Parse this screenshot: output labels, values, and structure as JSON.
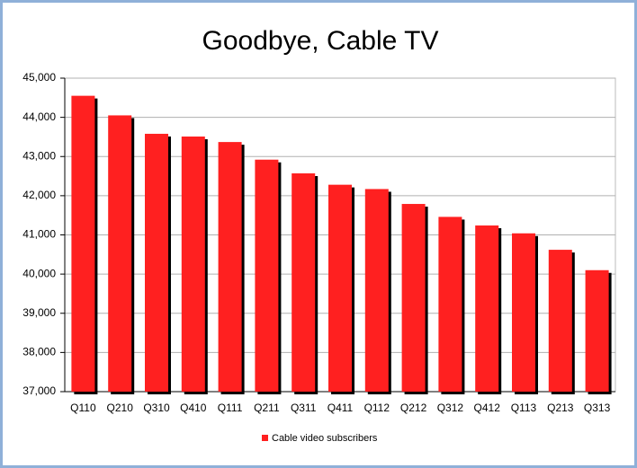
{
  "chart_data": {
    "type": "bar",
    "title": "Goodbye, Cable TV",
    "categories": [
      "Q110",
      "Q210",
      "Q310",
      "Q410",
      "Q111",
      "Q211",
      "Q311",
      "Q411",
      "Q112",
      "Q212",
      "Q312",
      "Q412",
      "Q113",
      "Q213",
      "Q313"
    ],
    "series": [
      {
        "name": "Cable video subscribers",
        "color": "#ff2020",
        "values": [
          44550,
          44050,
          43580,
          43510,
          43370,
          42920,
          42570,
          42280,
          42170,
          41790,
          41460,
          41240,
          41040,
          40620,
          40100
        ]
      }
    ],
    "ylim": [
      37000,
      45000
    ],
    "yticks": [
      {
        "value": 37000,
        "label": "37,000"
      },
      {
        "value": 38000,
        "label": "38,000"
      },
      {
        "value": 39000,
        "label": "39,000"
      },
      {
        "value": 40000,
        "label": "40,000"
      },
      {
        "value": 41000,
        "label": "41,000"
      },
      {
        "value": 42000,
        "label": "42,000"
      },
      {
        "value": 43000,
        "label": "43,000"
      },
      {
        "value": 44000,
        "label": "44,000"
      },
      {
        "value": 45000,
        "label": "45,000"
      }
    ],
    "grid": true,
    "legend": "bottom"
  }
}
